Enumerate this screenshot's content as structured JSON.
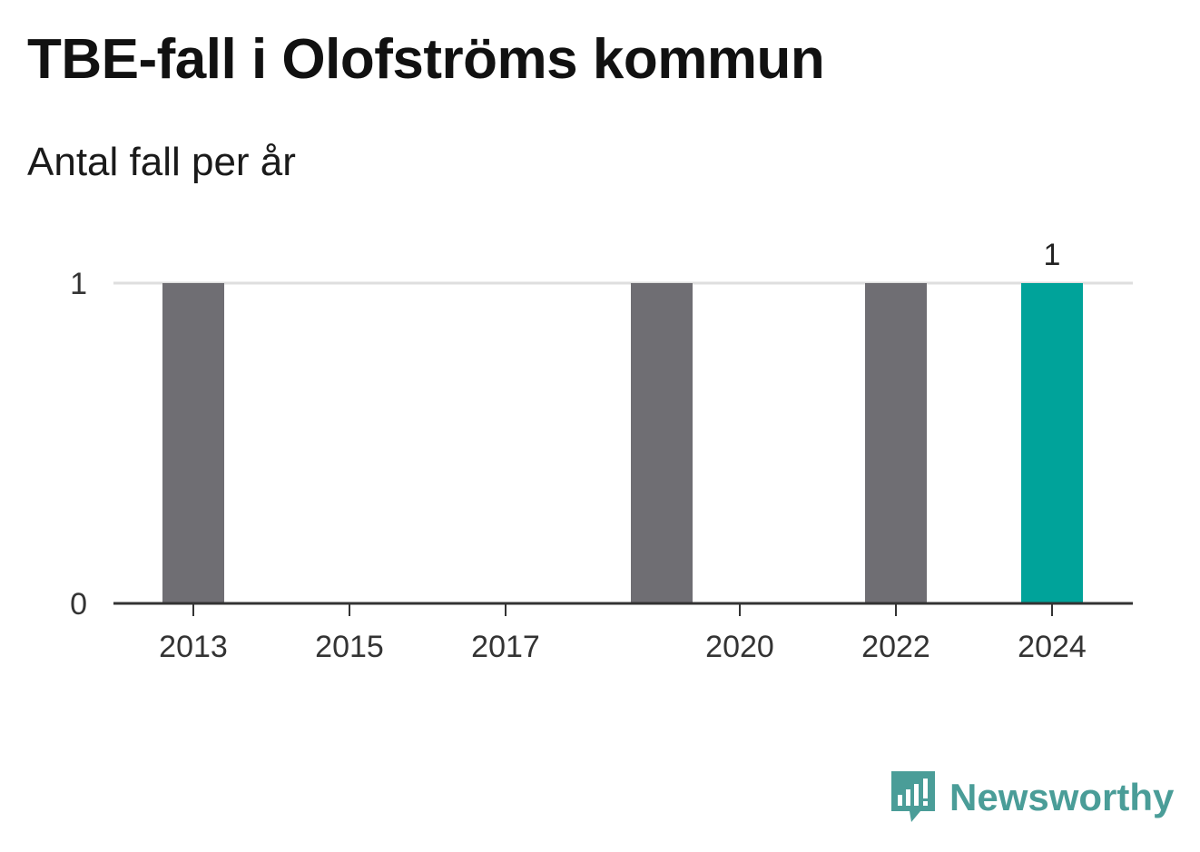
{
  "header": {
    "title": "TBE-fall i Olofströms kommun",
    "subtitle": "Antal fall per år"
  },
  "brand": {
    "name": "Newsworthy",
    "icon": "newsworthy-logo-icon",
    "color": "#4a9d98"
  },
  "chart_data": {
    "type": "bar",
    "categories": [
      "2013",
      "2014",
      "2015",
      "2016",
      "2017",
      "2018",
      "2019",
      "2020",
      "2021",
      "2022",
      "2023",
      "2024"
    ],
    "values": [
      1,
      0,
      0,
      0,
      0,
      0,
      1,
      0,
      0,
      1,
      0,
      1
    ],
    "x_tick_labels": [
      "2013",
      "2015",
      "2017",
      "2020",
      "2022",
      "2024"
    ],
    "y_ticks": [
      0,
      1
    ],
    "ylim": [
      0,
      1
    ],
    "grid": true,
    "highlight_category": "2024",
    "data_labels": [
      {
        "category": "2024",
        "text": "1"
      }
    ],
    "colors": {
      "bar": "#6f6e73",
      "highlight": "#00a39a",
      "grid": "#dedede",
      "axis": "#333333"
    }
  }
}
